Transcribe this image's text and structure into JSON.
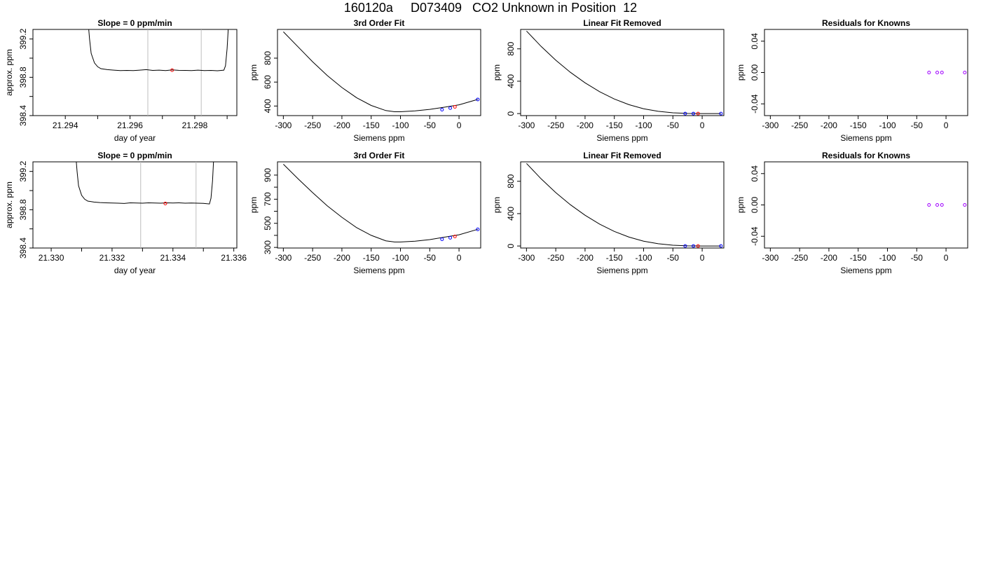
{
  "page": {
    "title": "160120a     D073409   CO2 Unknown in Position  12"
  },
  "colors": {
    "line": "#000000",
    "known_point": "#0000ff",
    "unknown_point": "#ff0000",
    "residual_point": "#a000ff",
    "guide": "#bebebe"
  },
  "chart_data": [
    {
      "type": "line",
      "title": "Slope =  0  ppm/min",
      "xlabel": "day of year",
      "ylabel": "approx. ppm",
      "xlim": [
        21.293,
        21.2993
      ],
      "ylim": [
        398.4,
        399.3
      ],
      "xticks": [
        21.294,
        21.295,
        21.296,
        21.297,
        21.298,
        21.299
      ],
      "xticklabels": [
        "21.294",
        "",
        "21.296",
        "",
        "21.298",
        ""
      ],
      "yticks": [
        398.4,
        398.6,
        398.8,
        399.0,
        399.2
      ],
      "yticklabels": [
        "398.4",
        "",
        "398.8",
        "",
        "399.2"
      ],
      "vlines": [
        21.29655,
        21.2982
      ],
      "series": [
        {
          "x": [
            21.2947,
            21.29475,
            21.2948,
            21.2949,
            21.295,
            21.2951,
            21.2953,
            21.2955,
            21.2957,
            21.2959,
            21.2961,
            21.2963,
            21.2965,
            21.2967,
            21.2969,
            21.2971,
            21.2973,
            21.2975,
            21.2977,
            21.2979,
            21.2981,
            21.2983,
            21.2985,
            21.2987,
            21.2989,
            21.29895,
            21.299,
            21.29905
          ],
          "y": [
            399.4,
            399.2,
            399.05,
            398.95,
            398.91,
            398.89,
            398.88,
            398.875,
            398.87,
            398.872,
            398.87,
            398.875,
            398.88,
            398.872,
            398.875,
            398.87,
            398.878,
            398.873,
            398.872,
            398.87,
            398.875,
            398.87,
            398.872,
            398.868,
            398.875,
            398.92,
            399.1,
            399.4
          ]
        }
      ],
      "points": [
        {
          "x": 21.2973,
          "y": 398.875,
          "role": "unknown"
        }
      ]
    },
    {
      "type": "line",
      "title": "3rd Order Fit",
      "xlabel": "Siemens ppm",
      "ylabel": "ppm",
      "xlim": [
        -310,
        37
      ],
      "ylim": [
        320,
        1040
      ],
      "xticks": [
        -300,
        -250,
        -200,
        -150,
        -100,
        -50,
        0
      ],
      "xticklabels": [
        "-300",
        "-250",
        "-200",
        "-150",
        "-100",
        "-50",
        "0"
      ],
      "yticks": [
        400,
        600,
        800
      ],
      "yticklabels": [
        "400",
        "600",
        "800"
      ],
      "curve": {
        "x": [
          -300,
          -275,
          -250,
          -225,
          -200,
          -175,
          -150,
          -125,
          -110,
          -100,
          -75,
          -50,
          -25,
          0,
          32
        ],
        "y": [
          1020,
          895,
          770,
          655,
          555,
          470,
          405,
          362,
          352,
          352,
          360,
          372,
          390,
          410,
          455
        ]
      },
      "points": [
        {
          "x": -29,
          "y": 370,
          "role": "known"
        },
        {
          "x": -15,
          "y": 383,
          "role": "known"
        },
        {
          "x": 32,
          "y": 455,
          "role": "known"
        },
        {
          "x": -7,
          "y": 393,
          "role": "unknown"
        }
      ]
    },
    {
      "type": "line",
      "title": "Linear Fit Removed",
      "xlabel": "Siemens ppm",
      "ylabel": "ppm",
      "xlim": [
        -310,
        37
      ],
      "ylim": [
        -25,
        1040
      ],
      "xticks": [
        -300,
        -250,
        -200,
        -150,
        -100,
        -50,
        0
      ],
      "xticklabels": [
        "-300",
        "-250",
        "-200",
        "-150",
        "-100",
        "-50",
        "0"
      ],
      "yticks": [
        0,
        400,
        800
      ],
      "yticklabels": [
        "0",
        "400",
        "800"
      ],
      "curve": {
        "x": [
          -300,
          -275,
          -250,
          -225,
          -200,
          -175,
          -150,
          -125,
          -100,
          -75,
          -50,
          -25,
          0,
          32
        ],
        "y": [
          1020,
          830,
          660,
          510,
          380,
          270,
          180,
          110,
          60,
          28,
          10,
          2,
          0,
          0
        ]
      },
      "points": [
        {
          "x": -29,
          "y": 0,
          "role": "known"
        },
        {
          "x": -15,
          "y": 0,
          "role": "known"
        },
        {
          "x": 32,
          "y": 0,
          "role": "known"
        },
        {
          "x": -7,
          "y": 0,
          "role": "unknown"
        }
      ]
    },
    {
      "type": "scatter",
      "title": "Residuals for Knowns",
      "xlabel": "Siemens ppm",
      "ylabel": "ppm",
      "xlim": [
        -310,
        37
      ],
      "ylim": [
        -0.055,
        0.055
      ],
      "xticks": [
        -300,
        -250,
        -200,
        -150,
        -100,
        -50,
        0
      ],
      "xticklabels": [
        "-300",
        "-250",
        "-200",
        "-150",
        "-100",
        "-50",
        "0"
      ],
      "yticks": [
        -0.04,
        0.0,
        0.04
      ],
      "yticklabels": [
        "-0.04",
        "0.00",
        "0.04"
      ],
      "points": [
        {
          "x": -29,
          "y": 0,
          "role": "residual"
        },
        {
          "x": -15,
          "y": 0,
          "role": "residual"
        },
        {
          "x": -7,
          "y": 0,
          "role": "residual"
        },
        {
          "x": 32,
          "y": 0,
          "role": "residual"
        }
      ]
    },
    {
      "type": "line",
      "title": "Slope =  0  ppm/min",
      "xlabel": "day of year",
      "ylabel": "approx. ppm",
      "xlim": [
        21.3294,
        21.3361
      ],
      "ylim": [
        398.4,
        399.3
      ],
      "xticks": [
        21.33,
        21.331,
        21.332,
        21.333,
        21.334,
        21.335,
        21.336
      ],
      "xticklabels": [
        "21.330",
        "",
        "21.332",
        "",
        "21.334",
        "",
        "21.336"
      ],
      "yticks": [
        398.4,
        398.6,
        398.8,
        399.0,
        399.2
      ],
      "yticklabels": [
        "398.4",
        "",
        "398.8",
        "",
        "399.2"
      ],
      "vlines": [
        21.33294,
        21.33476
      ],
      "series": [
        {
          "x": [
            21.3308,
            21.33085,
            21.3309,
            21.331,
            21.3311,
            21.3312,
            21.3314,
            21.3316,
            21.3318,
            21.332,
            21.3322,
            21.3324,
            21.3326,
            21.3328,
            21.333,
            21.3332,
            21.3334,
            21.3336,
            21.3338,
            21.334,
            21.3342,
            21.3344,
            21.3346,
            21.3348,
            21.335,
            21.3352,
            21.33525,
            21.3353,
            21.33535
          ],
          "y": [
            399.4,
            399.2,
            399.05,
            398.95,
            398.91,
            398.89,
            398.88,
            398.875,
            398.872,
            398.87,
            398.868,
            398.865,
            398.872,
            398.87,
            398.868,
            398.872,
            398.87,
            398.868,
            398.872,
            398.87,
            398.872,
            398.868,
            398.87,
            398.868,
            398.866,
            398.86,
            398.92,
            399.1,
            399.4
          ]
        }
      ],
      "points": [
        {
          "x": 21.33375,
          "y": 398.865,
          "role": "unknown"
        }
      ]
    },
    {
      "type": "line",
      "title": "3rd Order Fit",
      "xlabel": "Siemens ppm",
      "ylabel": "ppm",
      "xlim": [
        -310,
        37
      ],
      "ylim": [
        295,
        1010
      ],
      "xticks": [
        -300,
        -250,
        -200,
        -150,
        -100,
        -50,
        0
      ],
      "xticklabels": [
        "-300",
        "-250",
        "-200",
        "-150",
        "-100",
        "-50",
        "0"
      ],
      "yticks": [
        300,
        400,
        500,
        600,
        700,
        800,
        900
      ],
      "yticklabels": [
        "300",
        "",
        "500",
        "",
        "700",
        "",
        "900"
      ],
      "curve": {
        "x": [
          -300,
          -275,
          -250,
          -225,
          -200,
          -175,
          -150,
          -125,
          -110,
          -100,
          -75,
          -50,
          -25,
          0,
          32
        ],
        "y": [
          990,
          870,
          755,
          645,
          550,
          465,
          400,
          355,
          345,
          345,
          352,
          365,
          385,
          405,
          450
        ]
      },
      "points": [
        {
          "x": -29,
          "y": 368,
          "role": "known"
        },
        {
          "x": -15,
          "y": 380,
          "role": "known"
        },
        {
          "x": 32,
          "y": 450,
          "role": "known"
        },
        {
          "x": -7,
          "y": 391,
          "role": "unknown"
        }
      ]
    },
    {
      "type": "line",
      "title": "Linear Fit Removed",
      "xlabel": "Siemens ppm",
      "ylabel": "ppm",
      "xlim": [
        -310,
        37
      ],
      "ylim": [
        -25,
        1040
      ],
      "xticks": [
        -300,
        -250,
        -200,
        -150,
        -100,
        -50,
        0
      ],
      "xticklabels": [
        "-300",
        "-250",
        "-200",
        "-150",
        "-100",
        "-50",
        "0"
      ],
      "yticks": [
        0,
        400,
        800
      ],
      "yticklabels": [
        "0",
        "400",
        "800"
      ],
      "curve": {
        "x": [
          -300,
          -275,
          -250,
          -225,
          -200,
          -175,
          -150,
          -125,
          -100,
          -75,
          -50,
          -25,
          0,
          32
        ],
        "y": [
          1020,
          830,
          660,
          510,
          380,
          270,
          180,
          110,
          60,
          28,
          10,
          2,
          0,
          0
        ]
      },
      "points": [
        {
          "x": -29,
          "y": 0,
          "role": "known"
        },
        {
          "x": -15,
          "y": 0,
          "role": "known"
        },
        {
          "x": 32,
          "y": 0,
          "role": "known"
        },
        {
          "x": -7,
          "y": 0,
          "role": "unknown"
        }
      ]
    },
    {
      "type": "scatter",
      "title": "Residuals for Knowns",
      "xlabel": "Siemens ppm",
      "ylabel": "ppm",
      "xlim": [
        -310,
        37
      ],
      "ylim": [
        -0.055,
        0.055
      ],
      "xticks": [
        -300,
        -250,
        -200,
        -150,
        -100,
        -50,
        0
      ],
      "xticklabels": [
        "-300",
        "-250",
        "-200",
        "-150",
        "-100",
        "-50",
        "0"
      ],
      "yticks": [
        -0.04,
        0.0,
        0.04
      ],
      "yticklabels": [
        "-0.04",
        "0.00",
        "0.04"
      ],
      "points": [
        {
          "x": -29,
          "y": 0,
          "role": "residual"
        },
        {
          "x": -15,
          "y": 0,
          "role": "residual"
        },
        {
          "x": -7,
          "y": 0,
          "role": "residual"
        },
        {
          "x": 32,
          "y": 0,
          "role": "residual"
        }
      ]
    }
  ]
}
